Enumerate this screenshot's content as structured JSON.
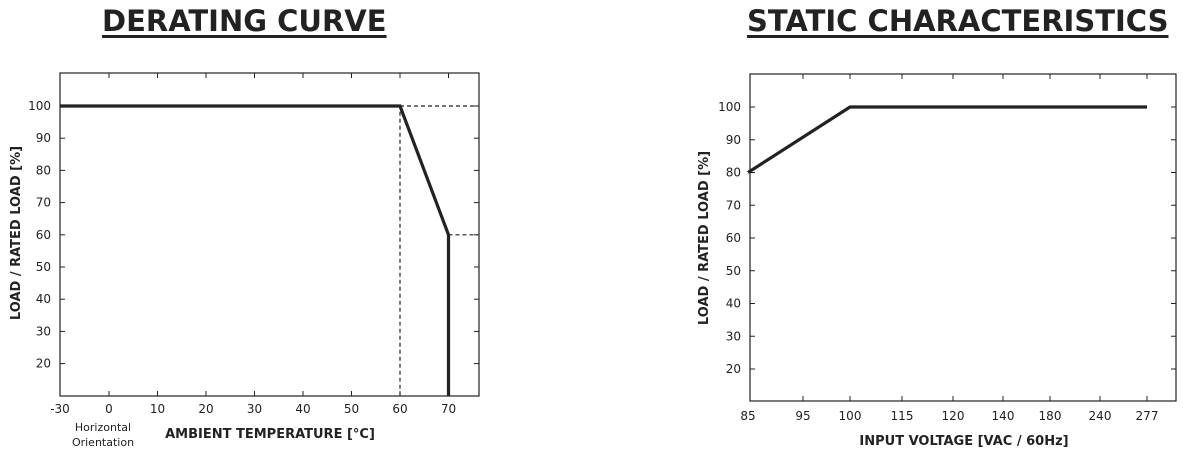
{
  "chart_data": [
    {
      "type": "line",
      "title": "DERATING CURVE",
      "xlabel": "AMBIENT TEMPERATURE [°C]",
      "ylabel": "LOAD / RATED LOAD [%]",
      "annotation": "Horizontal Orientation",
      "x_ticks": [
        -30,
        0,
        10,
        20,
        30,
        40,
        50,
        60,
        70
      ],
      "y_ticks": [
        20,
        30,
        40,
        50,
        60,
        70,
        80,
        90,
        100
      ],
      "xlim": [
        -30,
        76
      ],
      "ylim": [
        10,
        110
      ],
      "grid": false,
      "series": [
        {
          "x": [
            -30,
            60,
            70,
            70
          ],
          "y": [
            100,
            100,
            60,
            10
          ]
        }
      ],
      "reference_lines": [
        {
          "x": [
            60,
            60
          ],
          "y": [
            10,
            100
          ]
        },
        {
          "x": [
            60,
            76
          ],
          "y": [
            100,
            100
          ]
        },
        {
          "x": [
            70,
            76
          ],
          "y": [
            60,
            60
          ]
        }
      ]
    },
    {
      "type": "line",
      "title": "STATIC CHARACTERISTICS",
      "xlabel": "INPUT VOLTAGE [VAC / 60Hz]",
      "ylabel": "LOAD / RATED LOAD [%]",
      "x_ticks": [
        "85",
        "95",
        "100",
        "115",
        "120",
        "140",
        "180",
        "240",
        "277"
      ],
      "y_ticks": [
        20,
        30,
        40,
        50,
        60,
        70,
        80,
        90,
        100
      ],
      "ylim": [
        10,
        110
      ],
      "grid": false,
      "series": [
        {
          "x": [
            "85",
            "100",
            "277"
          ],
          "y": [
            80,
            100,
            100
          ]
        }
      ]
    }
  ]
}
